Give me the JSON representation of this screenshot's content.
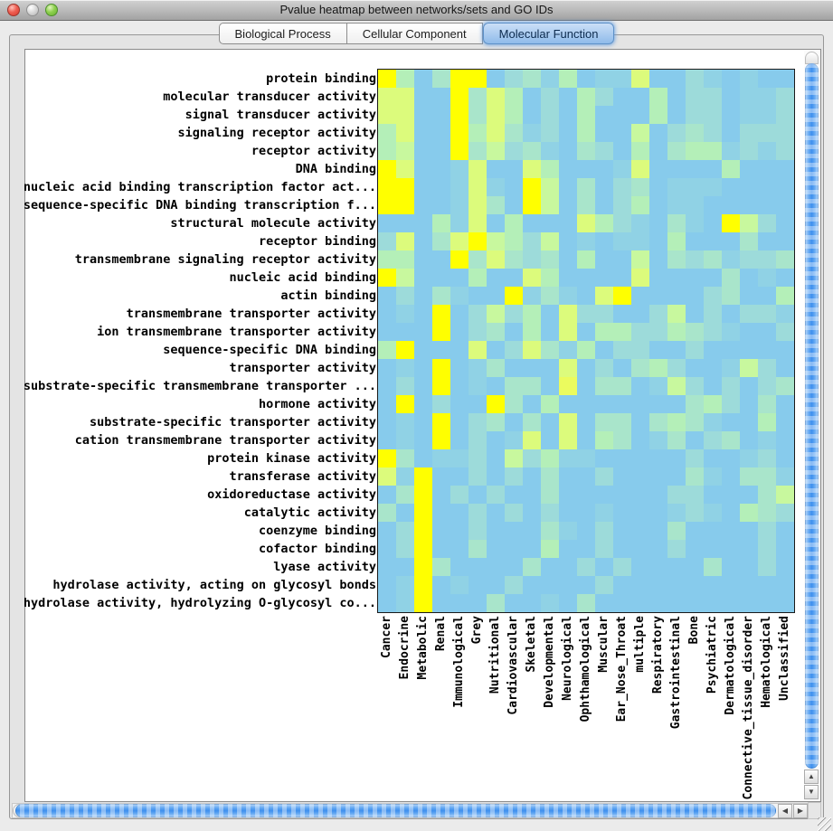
{
  "window": {
    "title": "Pvalue heatmap between networks/sets and GO IDs"
  },
  "tabs": [
    {
      "label": "Biological Process",
      "selected": false
    },
    {
      "label": "Cellular Component",
      "selected": false
    },
    {
      "label": "Molecular Function",
      "selected": true
    }
  ],
  "scrollbar_icons": {
    "up": "▲",
    "down": "▼",
    "left": "◀",
    "right": "▶"
  },
  "chart_data": {
    "type": "heatmap",
    "title": "Pvalue heatmap between networks/sets and GO IDs",
    "selected_tab": "Molecular Function",
    "rows": [
      "protein binding",
      "molecular transducer activity",
      "signal transducer activity",
      "signaling receptor activity",
      "receptor activity",
      "DNA binding",
      "nucleic acid binding transcription factor act...",
      "sequence-specific DNA binding transcription f...",
      "structural molecule activity",
      "receptor binding",
      "transmembrane signaling receptor activity",
      "nucleic acid binding",
      "actin binding",
      "transmembrane transporter activity",
      "ion transmembrane transporter activity",
      "sequence-specific DNA binding",
      "transporter activity",
      "substrate-specific transmembrane transporter ...",
      "hormone activity",
      "substrate-specific transporter activity",
      "cation transmembrane transporter activity",
      "protein kinase activity",
      "transferase activity",
      "oxidoreductase activity",
      "catalytic activity",
      "coenzyme binding",
      "cofactor binding",
      "lyase activity",
      "hydrolase activity, acting on glycosyl bonds",
      "hydrolase activity, hydrolyzing O-glycosyl co..."
    ],
    "columns": [
      "Cancer",
      "Endocrine",
      "Metabolic",
      "Renal",
      "Immunological",
      "Grey",
      "Nutritional",
      "Cardiovascular",
      "Skeletal",
      "Developmental",
      "Neurological",
      "Ophthamological",
      "Muscular",
      "Ear_Nose_Throat",
      "multiple",
      "Respiratory",
      "Gastrointestinal",
      "Bone",
      "Psychiatric",
      "Dermatological",
      "Connective_tissue_disorder",
      "Hematological",
      "Unclassified"
    ],
    "palette": [
      "#87CBEC",
      "#90D2E5",
      "#9DDBDA",
      "#A9E5CB",
      "#B4EFB8",
      "#C8F89E",
      "#DCFB7C",
      "#EBFB5E",
      "#F5FD34",
      "#FFFF00"
    ],
    "scale_note": "0 = light blue (non-significant) through 9 = bright yellow (most significant p-value)",
    "values": [
      "94039902314011600210100",
      "66009364020420040220112",
      "66009364020400040220112",
      "46009463120400502320222",
      "45009352310320403441212",
      "96001600640001600004000",
      "99001610950302301110000",
      "99001630950302401100000",
      "00041604000642103109520",
      "26036954250101104000300",
      "44009363230400503231223",
      "95000400640000600003010",
      "02031009131069000023004",
      "01090252406220025020221",
      "00090230406044224321002",
      "49000602631402200200000",
      "01090130006020342001520",
      "02090103307033015202023",
      "09020093040000000342030",
      "01090230306033034310040",
      "01090201606043013023010",
      "93011205241100000200120",
      "61900202030020000310331",
      "03902020030000002200035",
      "30900202020010001210432",
      "02900200031020003000020",
      "02900300040020002000020",
      "00930000300202000030020",
      "01901002000020000000000",
      "01900030010300000000000"
    ]
  }
}
